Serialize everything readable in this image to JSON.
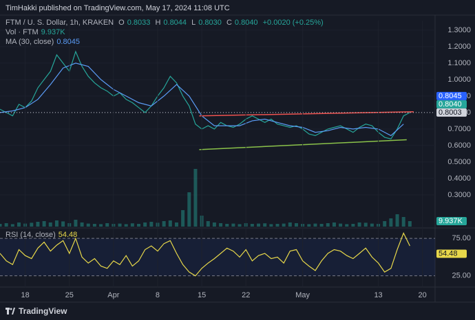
{
  "header": "TimHakki published on TradingView.com, May 17, 2024 11:08 UTC",
  "footer": "TradingView",
  "chart_data": [
    {
      "type": "line",
      "legend": {
        "symbol": "FTM / U. S. Dollar, 1h, KRAKEN",
        "o_label": "O",
        "open": "0.8033",
        "h_label": "H",
        "high": "0.8044",
        "l_label": "L",
        "low": "0.8030",
        "c_label": "C",
        "close": "0.8040",
        "change": "+0.0020 (+0.25%)",
        "ma_name": "MA (30, close)",
        "ma_value": "0.8045"
      },
      "x": [
        13,
        14,
        15,
        16,
        17,
        18,
        19,
        20,
        21,
        22,
        23,
        24,
        25,
        26,
        27,
        28,
        29,
        30,
        31,
        32,
        33,
        34,
        35,
        36,
        37,
        38,
        39,
        40,
        41,
        42,
        43,
        44,
        45,
        46,
        47,
        48,
        49,
        50,
        51,
        52,
        53,
        54,
        55,
        56,
        57,
        58,
        59,
        60,
        61,
        62,
        63,
        64,
        65,
        66,
        67,
        68,
        69,
        70,
        71,
        72,
        73,
        74,
        75,
        76,
        77,
        78
      ],
      "xlim": [
        13,
        82
      ],
      "ylim": [
        0.108,
        1.358
      ],
      "yticks": [
        {
          "value": 0.3,
          "label": "0.3000"
        },
        {
          "value": 0.4,
          "label": "0.4000"
        },
        {
          "value": 0.5,
          "label": "0.5000"
        },
        {
          "value": 0.6,
          "label": "0.6000"
        },
        {
          "value": 0.7,
          "label": "0.7000"
        },
        {
          "value": 0.8,
          "label": "0.8000"
        },
        {
          "value": 0.9,
          "label": "0.9000"
        },
        {
          "value": 1.0,
          "label": "1.0000"
        },
        {
          "value": 1.1,
          "label": "1.1000"
        },
        {
          "value": 1.2,
          "label": "1.2000"
        },
        {
          "value": 1.3,
          "label": "1.3000"
        }
      ],
      "grid": true,
      "series": [
        {
          "color": "#26a69a",
          "values": [
            0.82,
            0.8,
            0.78,
            0.85,
            0.83,
            0.87,
            0.95,
            1.0,
            1.05,
            1.15,
            1.1,
            1.05,
            1.17,
            1.08,
            1.02,
            0.98,
            0.95,
            0.93,
            0.9,
            0.92,
            0.88,
            0.86,
            0.83,
            0.8,
            0.84,
            0.9,
            0.95,
            1.02,
            0.98,
            0.9,
            0.84,
            0.73,
            0.7,
            0.72,
            0.7,
            0.74,
            0.72,
            0.71,
            0.73,
            0.76,
            0.78,
            0.76,
            0.74,
            0.76,
            0.73,
            0.72,
            0.71,
            0.72,
            0.7,
            0.67,
            0.66,
            0.68,
            0.7,
            0.71,
            0.72,
            0.7,
            0.68,
            0.71,
            0.73,
            0.72,
            0.68,
            0.65,
            0.64,
            0.7,
            0.78,
            0.8
          ]
        },
        {
          "color": "#5b9cf6",
          "x": [
            13,
            15,
            17,
            19,
            21,
            23,
            25,
            27,
            29,
            31,
            33,
            35,
            37,
            39,
            41,
            43,
            45,
            47,
            49,
            51,
            53,
            55,
            57,
            59,
            61,
            63,
            65,
            67,
            69,
            71,
            73,
            75,
            77
          ],
          "values": [
            0.8,
            0.81,
            0.83,
            0.88,
            0.97,
            1.07,
            1.1,
            1.08,
            1.0,
            0.94,
            0.9,
            0.86,
            0.84,
            0.9,
            0.97,
            0.9,
            0.78,
            0.72,
            0.72,
            0.72,
            0.75,
            0.76,
            0.74,
            0.72,
            0.71,
            0.68,
            0.69,
            0.71,
            0.7,
            0.71,
            0.7,
            0.66,
            0.73
          ]
        }
      ],
      "trendlines": [
        {
          "color": "#f05350",
          "x": [
            44.6,
            78.6
          ],
          "y": [
            0.78,
            0.805
          ]
        },
        {
          "color": "#8bc34a",
          "x": [
            44.6,
            77.5
          ],
          "y": [
            0.575,
            0.635
          ]
        }
      ],
      "badges": [
        {
          "value": 0.8045,
          "label": "0.8045",
          "color": "#2962ff",
          "text_color": "#ffffff"
        },
        {
          "value": 0.804,
          "label": "0.8040",
          "color": "#26a69a",
          "text_color": "#ffffff"
        },
        {
          "value": 0.8003,
          "label": "0.8003",
          "color": "#d1d4dc",
          "text_color": "#131722",
          "line": true
        }
      ]
    },
    {
      "type": "bar",
      "legend": {
        "name": "Vol · FTM",
        "value": "9.937K"
      },
      "x": [
        13,
        14,
        15,
        16,
        17,
        18,
        19,
        20,
        21,
        22,
        23,
        24,
        25,
        26,
        27,
        28,
        29,
        30,
        31,
        32,
        33,
        34,
        35,
        36,
        37,
        38,
        39,
        40,
        41,
        42,
        43,
        44,
        45,
        46,
        47,
        48,
        49,
        50,
        51,
        52,
        53,
        54,
        55,
        56,
        57,
        58,
        59,
        60,
        61,
        62,
        63,
        64,
        65,
        66,
        67,
        68,
        69,
        70,
        71,
        72,
        73,
        74,
        75,
        76,
        77,
        78
      ],
      "xlim": [
        13,
        82
      ],
      "ylim": [
        0,
        500
      ],
      "series": [
        {
          "color": "#26a69a",
          "values": [
            20,
            25,
            18,
            30,
            22,
            28,
            35,
            40,
            30,
            45,
            38,
            25,
            50,
            30,
            22,
            20,
            18,
            25,
            20,
            22,
            18,
            24,
            20,
            30,
            35,
            28,
            40,
            45,
            30,
            120,
            250,
            420,
            80,
            40,
            30,
            25,
            20,
            22,
            18,
            25,
            20,
            22,
            24,
            18,
            20,
            22,
            30,
            25,
            20,
            18,
            22,
            20,
            25,
            30,
            22,
            18,
            20,
            30,
            28,
            22,
            20,
            40,
            60,
            90,
            70,
            40
          ]
        }
      ],
      "badges": [
        {
          "value": 9.937,
          "label": "9.937K",
          "color": "#26a69a",
          "text_color": "#ffffff"
        }
      ]
    },
    {
      "type": "line",
      "legend": {
        "name": "RSI (14, close)",
        "value": "54.48"
      },
      "x": [
        13,
        14,
        15,
        16,
        17,
        18,
        19,
        20,
        21,
        22,
        23,
        24,
        25,
        26,
        27,
        28,
        29,
        30,
        31,
        32,
        33,
        34,
        35,
        36,
        37,
        38,
        39,
        40,
        41,
        42,
        43,
        44,
        45,
        46,
        47,
        48,
        49,
        50,
        51,
        52,
        53,
        54,
        55,
        56,
        57,
        58,
        59,
        60,
        61,
        62,
        63,
        64,
        65,
        66,
        67,
        68,
        69,
        70,
        71,
        72,
        73,
        74,
        75,
        76,
        77,
        78
      ],
      "xlim": [
        13,
        82
      ],
      "xticks": [
        {
          "value": 17,
          "label": "18"
        },
        {
          "value": 24,
          "label": "25"
        },
        {
          "value": 31,
          "label": "Apr"
        },
        {
          "value": 38,
          "label": "8"
        },
        {
          "value": 45,
          "label": "15"
        },
        {
          "value": 52,
          "label": "22"
        },
        {
          "value": 61,
          "label": "May"
        },
        {
          "value": 73,
          "label": "13"
        },
        {
          "value": 80,
          "label": "20"
        }
      ],
      "ylim": [
        10,
        88
      ],
      "yticks": [
        {
          "value": 75,
          "label": "75.00"
        },
        {
          "value": 25,
          "label": "25.00"
        }
      ],
      "band": [
        25,
        75
      ],
      "series": [
        {
          "color": "#e8d84a",
          "values": [
            55,
            45,
            40,
            60,
            52,
            48,
            62,
            70,
            58,
            66,
            72,
            55,
            75,
            50,
            42,
            48,
            38,
            35,
            45,
            40,
            52,
            38,
            45,
            60,
            65,
            58,
            68,
            72,
            55,
            40,
            30,
            25,
            35,
            42,
            48,
            55,
            62,
            58,
            50,
            60,
            45,
            52,
            55,
            48,
            50,
            42,
            58,
            60,
            45,
            38,
            32,
            45,
            55,
            60,
            58,
            52,
            48,
            55,
            62,
            50,
            42,
            30,
            35,
            60,
            82,
            65
          ]
        }
      ],
      "badges": [
        {
          "value": 54.48,
          "label": "54.48",
          "color": "#e8d84a",
          "text_color": "#131722"
        }
      ]
    }
  ]
}
